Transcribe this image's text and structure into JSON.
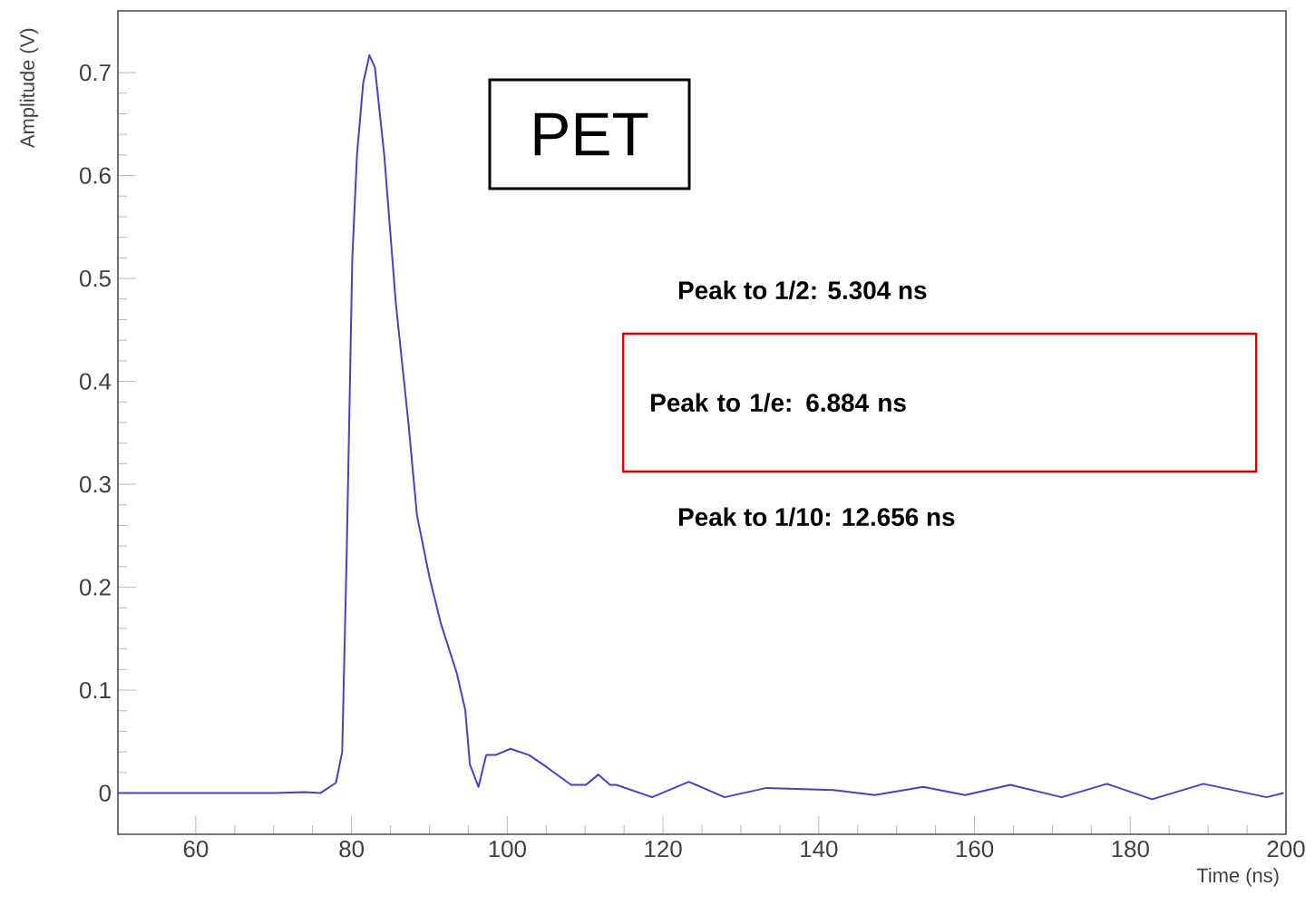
{
  "chart_data": {
    "type": "line",
    "xlabel": "Time (ns)",
    "ylabel": "Amplitude (V)",
    "xlim": [
      50,
      200
    ],
    "xticks": [
      60,
      80,
      100,
      120,
      140,
      160,
      180,
      200
    ],
    "ylim": [
      -0.04,
      0.76
    ],
    "yticks": [
      0,
      0.1,
      0.2,
      0.3,
      0.4,
      0.5,
      0.6,
      0.7
    ],
    "grid": false,
    "marker": "none",
    "line_style": "solid",
    "annotations": [
      "PET",
      "Peak to 1/2: 5.304 ns",
      "Peak to 1/e: 6.884 ns",
      "Peak to 1/10: 12.656 ns"
    ],
    "series": [
      {
        "color": "#4b3fc8",
        "x": [
          50,
          55,
          60,
          65,
          70,
          74,
          76,
          78,
          78.8,
          79.4,
          79.7,
          80.1,
          80.7,
          81.5,
          82.3,
          83.0,
          84.2,
          85.7,
          87.3,
          88.4,
          90.0,
          91.5,
          93.5,
          94.6,
          95.2,
          96.3,
          97.3,
          98.5,
          100.4,
          102.8,
          105.1,
          108.2,
          110.1,
          111.7,
          113.2,
          114.0,
          118.6,
          123.3,
          127.9,
          133.3,
          141.9,
          147.2,
          153.4,
          158.8,
          164.6,
          171.2,
          177.0,
          182.8,
          189.4,
          197.5,
          199.7
        ],
        "values": [
          0,
          0,
          0,
          0,
          0,
          0.001,
          0,
          0.01,
          0.04,
          0.24,
          0.36,
          0.52,
          0.62,
          0.69,
          0.717,
          0.705,
          0.62,
          0.475,
          0.36,
          0.27,
          0.21,
          0.164,
          0.117,
          0.081,
          0.028,
          0.006,
          0.037,
          0.037,
          0.043,
          0.037,
          0.025,
          0.008,
          0.008,
          0.018,
          0.008,
          0.008,
          -0.004,
          0.011,
          -0.004,
          0.005,
          0.003,
          -0.002,
          0.006,
          -0.002,
          0.008,
          -0.004,
          0.009,
          -0.006,
          0.009,
          -0.004,
          0
        ]
      }
    ]
  }
}
